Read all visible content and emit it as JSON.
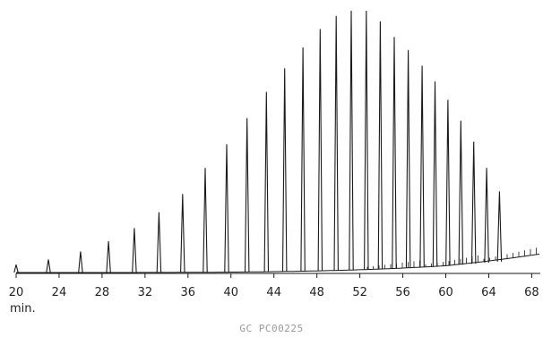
{
  "chart_data": {
    "type": "line",
    "title": "",
    "xlabel": "min.",
    "ylabel": "",
    "xlim": [
      20,
      68.8
    ],
    "ylim": [
      0,
      100
    ],
    "grid": false,
    "x_ticks": [
      20,
      24,
      28,
      32,
      36,
      40,
      44,
      48,
      52,
      56,
      60,
      64,
      68
    ],
    "x_tick_labels": [
      "20",
      "24",
      "28",
      "32",
      "36",
      "40",
      "44",
      "48",
      "52",
      "56",
      "60",
      "64",
      "68"
    ],
    "series": [
      {
        "peaks": {
          "x": [
            20.0,
            23.0,
            26.0,
            28.6,
            31.0,
            33.3,
            35.5,
            37.6,
            39.6,
            41.5,
            43.3,
            45.0,
            46.7,
            48.3,
            49.8,
            51.2,
            52.6,
            53.9,
            55.2,
            56.5,
            57.8,
            59.0,
            60.2,
            61.4,
            62.6,
            63.8,
            65.0
          ],
          "y": [
            3,
            5,
            8,
            12,
            17,
            23,
            30,
            40,
            49,
            59,
            69,
            78,
            86,
            93,
            98,
            100,
            100,
            96,
            90,
            85,
            79,
            73,
            66,
            58,
            50,
            40,
            31
          ]
        }
      }
    ]
  },
  "caption": "GC PC00225",
  "colors": {
    "trace": "#1a1a1a",
    "axis": "#1a1a1a",
    "caption": "#9a9a9a"
  }
}
